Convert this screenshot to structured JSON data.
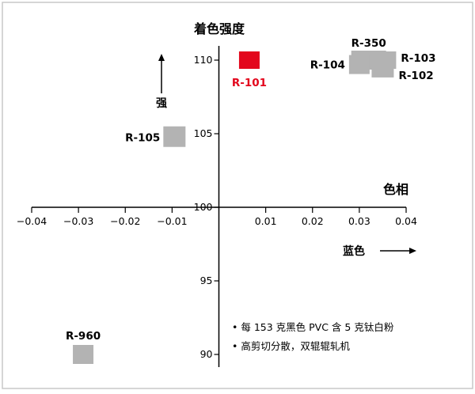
{
  "chart_data": {
    "type": "scatter",
    "title": "着色强度",
    "x_axis_label": "色相",
    "x_direction_label": "蓝色",
    "y_direction_label": "强",
    "xlim": [
      -0.04,
      0.04
    ],
    "ylim": [
      90,
      110
    ],
    "x_ticks": [
      "−0.04",
      "−0.03",
      "−0.02",
      "−0.01",
      "0.01",
      "0.02",
      "0.03",
      "0.04"
    ],
    "y_ticks": [
      "110",
      "105",
      "100",
      "95",
      "90"
    ],
    "points": [
      {
        "name": "R-101",
        "x": 0.0065,
        "y": 110.0,
        "color": "#e3061c"
      },
      {
        "name": "R-350",
        "x": 0.032,
        "y": 110.0,
        "color": "#b3b3b3"
      },
      {
        "name": "R-104",
        "x": 0.03,
        "y": 109.7,
        "color": "#b3b3b3"
      },
      {
        "name": "R-103",
        "x": 0.0355,
        "y": 110.0,
        "color": "#b3b3b3"
      },
      {
        "name": "R-102",
        "x": 0.035,
        "y": 109.2,
        "color": "#b3b3b3"
      },
      {
        "name": "R-105",
        "x": -0.0095,
        "y": 104.8,
        "color": "#b3b3b3"
      },
      {
        "name": "R-960",
        "x": -0.029,
        "y": 90.0,
        "color": "#b3b3b3"
      }
    ],
    "notes": [
      "• 每 153 克黑色 PVC 含 5 克钛白粉",
      "• 高剪切分散，双辊辊轧机"
    ],
    "colors": {
      "highlight": "#e3061c",
      "marker": "#b3b3b3",
      "axis": "#000000",
      "frame": "#c8c8c8"
    }
  }
}
